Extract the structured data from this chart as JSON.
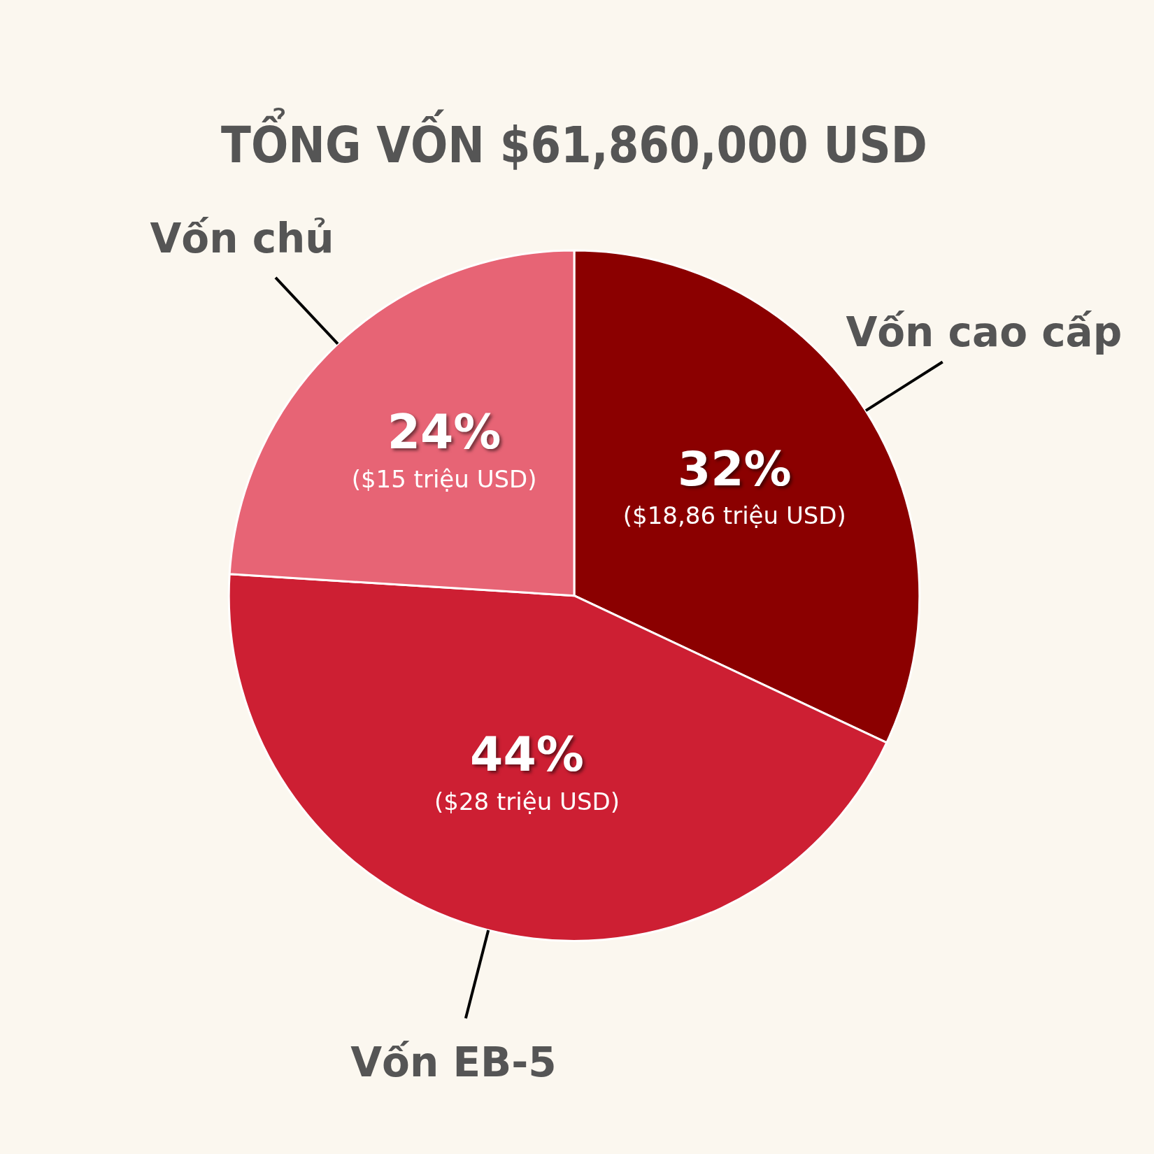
{
  "chart_data": {
    "type": "pie",
    "title": "TỔNG VỐN $61,860,000 USD",
    "categories": [
      "Vốn cao cấp",
      "Vốn EB-5",
      "Vốn chủ"
    ],
    "values": [
      32,
      44,
      24
    ],
    "colors": [
      "#8b0000",
      "#cd1f33",
      "#e76475"
    ],
    "value_labels": [
      "32%\n($18,86 triệu USD)",
      "44%\n($28 triệu USD)",
      "24%\n($15 triệu USD)"
    ],
    "legend": false
  }
}
